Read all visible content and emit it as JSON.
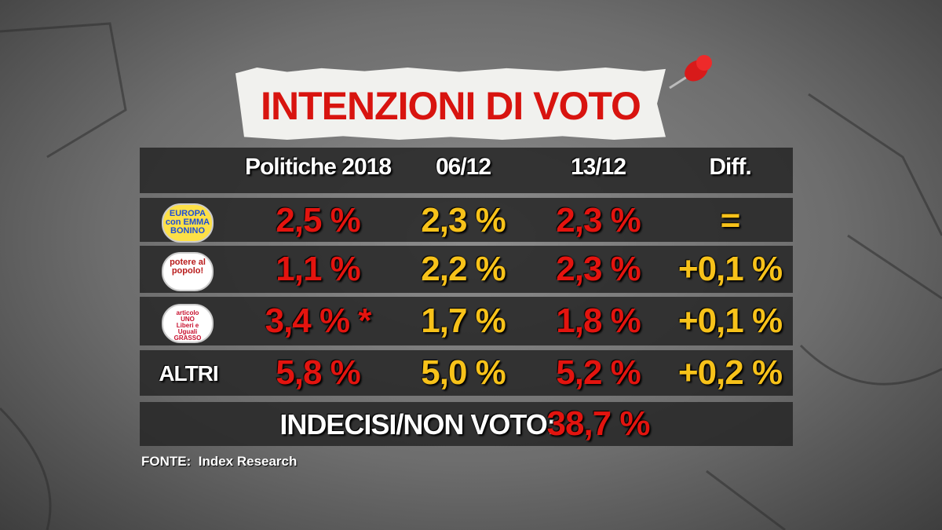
{
  "title": "INTENZIONI DI VOTO",
  "table": {
    "headers": [
      "Politiche 2018",
      "06/12",
      "13/12",
      "Diff."
    ],
    "rows": [
      {
        "logo": [
          "EUROPA",
          "con EMMA",
          "BONINO"
        ],
        "cells": [
          "2,5 %",
          "2,3 %",
          "2,3 %",
          "="
        ]
      },
      {
        "logo": [
          "potere al",
          "popolo!"
        ],
        "cells": [
          "1,1 %",
          "2,2 %",
          "2,3 %",
          "+0,1 %"
        ]
      },
      {
        "logo": [
          "articolo",
          "UNO",
          "Liberi e",
          "Uguali",
          "GRASSO"
        ],
        "cells": [
          "3,4 % *",
          "1,7 %",
          "1,8 %",
          "+0,1 %"
        ]
      },
      {
        "label": "ALTRI",
        "cells": [
          "5,8 %",
          "5,0 %",
          "5,2 %",
          "+0,2 %"
        ]
      }
    ]
  },
  "undecided": {
    "label": "INDECISI/NON VOTO:",
    "value": "38,7 %"
  },
  "source": "FONTE:  Index Research"
}
